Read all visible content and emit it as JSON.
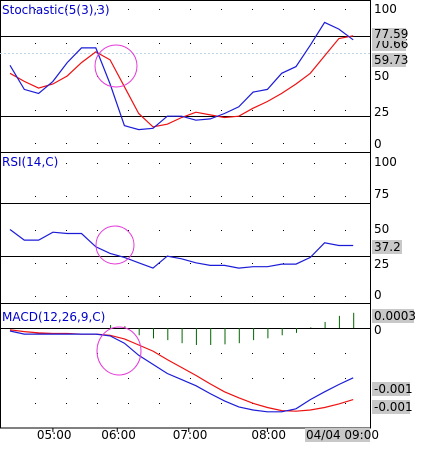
{
  "chart_data": [
    {
      "type": "line",
      "title": "Stochastic(5(3),3)",
      "ylim": [
        0,
        100
      ],
      "yticks": [
        0,
        25,
        50,
        75,
        100
      ],
      "reference_lines": [
        80,
        20
      ],
      "series": [
        {
          "name": "%K",
          "color": "#1c1cd8",
          "x": [
            0,
            1,
            2,
            3,
            4,
            5,
            6,
            7,
            8,
            9,
            10,
            11,
            12,
            13,
            14,
            15,
            16,
            17,
            18,
            19,
            20,
            21,
            22,
            23,
            24
          ],
          "values": [
            58,
            40,
            37,
            46,
            60,
            71,
            71,
            44,
            13,
            10,
            11,
            20,
            20,
            17,
            18,
            22,
            27,
            38,
            40,
            52,
            57,
            73,
            90,
            85,
            77
          ]
        },
        {
          "name": "%D",
          "color": "#ee1111",
          "x": [
            0,
            1,
            2,
            3,
            4,
            5,
            6,
            7,
            8,
            9,
            10,
            11,
            12,
            13,
            14,
            15,
            16,
            17,
            18,
            19,
            20,
            21,
            22,
            23,
            24
          ],
          "values": [
            52,
            46,
            41,
            44,
            50,
            60,
            68,
            62,
            42,
            22,
            12,
            14,
            19,
            23,
            21,
            19,
            20,
            26,
            31,
            37,
            44,
            52,
            65,
            78,
            80
          ]
        }
      ],
      "badges": [
        "77.59",
        "70.66",
        "59.73"
      ]
    },
    {
      "type": "line",
      "title": "RSI(14,C)",
      "ylim": [
        0,
        100
      ],
      "yticks": [
        0,
        25,
        50,
        75,
        100
      ],
      "reference_lines": [
        70,
        30
      ],
      "series": [
        {
          "name": "RSI",
          "color": "#1c1cd8",
          "x": [
            0,
            1,
            2,
            3,
            4,
            5,
            6,
            7,
            8,
            9,
            10,
            11,
            12,
            13,
            14,
            15,
            16,
            17,
            18,
            19,
            20,
            21,
            22,
            23,
            24
          ],
          "values": [
            50,
            42,
            42,
            48,
            47,
            47,
            37,
            32,
            29,
            25,
            21,
            30,
            28,
            25,
            23,
            23,
            21,
            22,
            22,
            24,
            24,
            29,
            40,
            38,
            38
          ]
        }
      ],
      "badges": [
        "37.2"
      ]
    },
    {
      "type": "line",
      "title": "MACD(12,26,9,C)",
      "ylim": [
        -0.0015,
        0.0003
      ],
      "yticks": [
        0
      ],
      "histogram": {
        "color": "#006600",
        "x": [
          7,
          8,
          9,
          10,
          11,
          12,
          13,
          14,
          15,
          16,
          17,
          18,
          19,
          20,
          21,
          22,
          23,
          24
        ],
        "values": [
          5e-05,
          3e-05,
          -0.00012,
          -0.00017,
          -0.0002,
          -0.00025,
          -0.00028,
          -0.00028,
          -0.00027,
          -0.00025,
          -0.0002,
          -0.00017,
          -0.00012,
          -8e-05,
          1e-05,
          0.0001,
          0.0002,
          0.00025
        ]
      },
      "series": [
        {
          "name": "MACD",
          "color": "#1c1cd8",
          "x": [
            0,
            1,
            2,
            3,
            4,
            5,
            6,
            7,
            8,
            9,
            10,
            11,
            12,
            13,
            14,
            15,
            16,
            17,
            18,
            19,
            20,
            21,
            22,
            23,
            24
          ],
          "values": [
            -5e-05,
            -0.0001,
            -0.0001,
            -0.0001,
            -0.0001,
            -0.0001,
            -0.0001,
            -0.00013,
            -0.00025,
            -0.00045,
            -0.0006,
            -0.00075,
            -0.00085,
            -0.00095,
            -0.00108,
            -0.0012,
            -0.0013,
            -0.00135,
            -0.00138,
            -0.00138,
            -0.00133,
            -0.00118,
            -0.00105,
            -0.00093,
            -0.00082
          ]
        },
        {
          "name": "Signal",
          "color": "#ee1111",
          "x": [
            0,
            1,
            2,
            3,
            4,
            5,
            6,
            7,
            8,
            9,
            10,
            11,
            12,
            13,
            14,
            15,
            16,
            17,
            18,
            19,
            20,
            21,
            22,
            23,
            24
          ],
          "values": [
            -3e-05,
            -6e-05,
            -8e-05,
            -9e-05,
            -9e-05,
            -0.0001,
            -0.0001,
            -0.00012,
            -0.00018,
            -0.00028,
            -0.00038,
            -0.00052,
            -0.00065,
            -0.00078,
            -0.00092,
            -0.00105,
            -0.00115,
            -0.00124,
            -0.00131,
            -0.00136,
            -0.00137,
            -0.00135,
            -0.00131,
            -0.00125,
            -0.00118
          ]
        }
      ],
      "badges": [
        "0.0003",
        "-0.001",
        "-0.001"
      ]
    }
  ],
  "x_axis": {
    "tick_labels": [
      "05:00",
      "06:00",
      "07:00",
      "08:00",
      "04/04 09:00"
    ],
    "tick_positions": [
      3,
      7.5,
      12.5,
      18,
      22.5
    ]
  },
  "colors": {
    "highlight_circle": "#e43ad8",
    "reference_line": "#000000",
    "badge_bg": "#c8c8c8"
  }
}
